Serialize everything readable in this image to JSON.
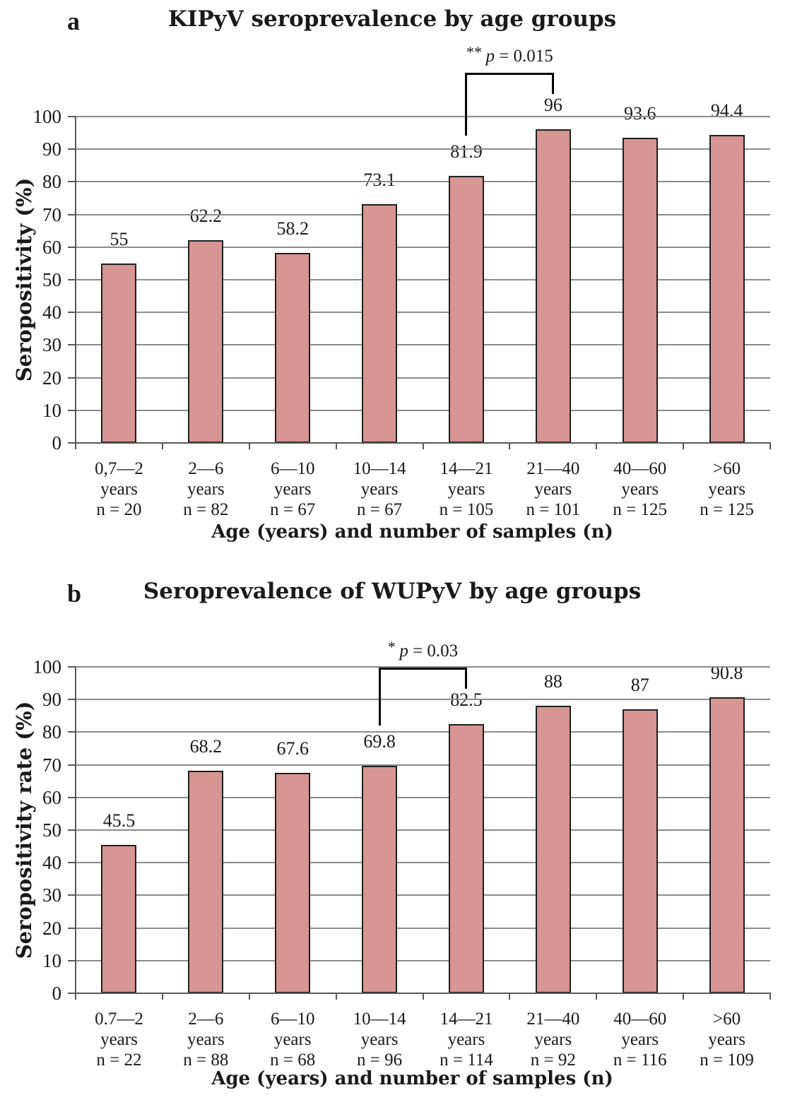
{
  "figure": {
    "background": "#ffffff",
    "text_color": "#1a1a1a"
  },
  "chart_data": [
    {
      "type": "bar",
      "panel_label": "a",
      "title": "KIPyV seroprevalence by age groups",
      "xlabel": "Age (years) and number of samples (n)",
      "ylabel": "Seropositivity (%)",
      "ylim": [
        0,
        100
      ],
      "ytick_step": 10,
      "yticks": [
        0,
        10,
        20,
        30,
        40,
        50,
        60,
        70,
        80,
        90,
        100
      ],
      "grid": true,
      "legend": "none",
      "categories": [
        {
          "age": "0,7—2",
          "unit": "years",
          "n": "n = 20"
        },
        {
          "age": "2—6",
          "unit": "years",
          "n": "n = 82"
        },
        {
          "age": "6—10",
          "unit": "years",
          "n": "n = 67"
        },
        {
          "age": "10—14",
          "unit": "years",
          "n": "n = 67"
        },
        {
          "age": "14—21",
          "unit": "years",
          "n": "n = 105"
        },
        {
          "age": "21—40",
          "unit": "years",
          "n": "n = 101"
        },
        {
          "age": "40—60",
          "unit": "years",
          "n": "n = 125"
        },
        {
          "age": ">60",
          "unit": "years",
          "n": "n = 125"
        }
      ],
      "values": [
        55,
        62.2,
        58.2,
        73.1,
        81.9,
        96,
        93.6,
        94.4
      ],
      "value_labels": [
        "55",
        "62.2",
        "58.2",
        "73.1",
        "81.9",
        "96",
        "93.6",
        "94.4"
      ],
      "significance": {
        "full_text": "** p = 0.015",
        "stars": "**",
        "p_var": "p",
        "p_rest": " = 0.015",
        "from_index": 4,
        "to_index": 5
      },
      "colors": {
        "bar_fill": "#d79593",
        "bar_border": "#1f1f1f",
        "gridline": "#8c8c8c",
        "axis": "#595959",
        "bracket": "#000000"
      }
    },
    {
      "type": "bar",
      "panel_label": "b",
      "title": "Seroprevalence of WUPyV by age groups",
      "xlabel": "Age (years) and number of samples (n)",
      "ylabel": "Seropositivity rate (%)",
      "ylim": [
        0,
        100
      ],
      "ytick_step": 10,
      "yticks": [
        0,
        10,
        20,
        30,
        40,
        50,
        60,
        70,
        80,
        90,
        100
      ],
      "grid": true,
      "legend": "none",
      "categories": [
        {
          "age": "0.7—2",
          "unit": "years",
          "n": "n = 22"
        },
        {
          "age": "2—6",
          "unit": "years",
          "n": "n = 88"
        },
        {
          "age": "6—10",
          "unit": "years",
          "n": "n = 68"
        },
        {
          "age": "10—14",
          "unit": "years",
          "n": "n = 96"
        },
        {
          "age": "14—21",
          "unit": "years",
          "n": "n = 114"
        },
        {
          "age": "21—40",
          "unit": "years",
          "n": "n = 92"
        },
        {
          "age": "40—60",
          "unit": "years",
          "n": "n = 116"
        },
        {
          "age": ">60",
          "unit": "years",
          "n": "n = 109"
        }
      ],
      "values": [
        45.5,
        68.2,
        67.6,
        69.8,
        82.5,
        88,
        87,
        90.8
      ],
      "value_labels": [
        "45.5",
        "68.2",
        "67.6",
        "69.8",
        "82.5",
        "88",
        "87",
        "90.8"
      ],
      "significance": {
        "full_text": "* p = 0.03",
        "stars": "*",
        "p_var": "p",
        "p_rest": " = 0.03",
        "from_index": 3,
        "to_index": 4
      },
      "colors": {
        "bar_fill": "#d79593",
        "bar_border": "#1f1f1f",
        "gridline": "#8c8c8c",
        "axis": "#595959",
        "bracket": "#000000"
      }
    }
  ]
}
